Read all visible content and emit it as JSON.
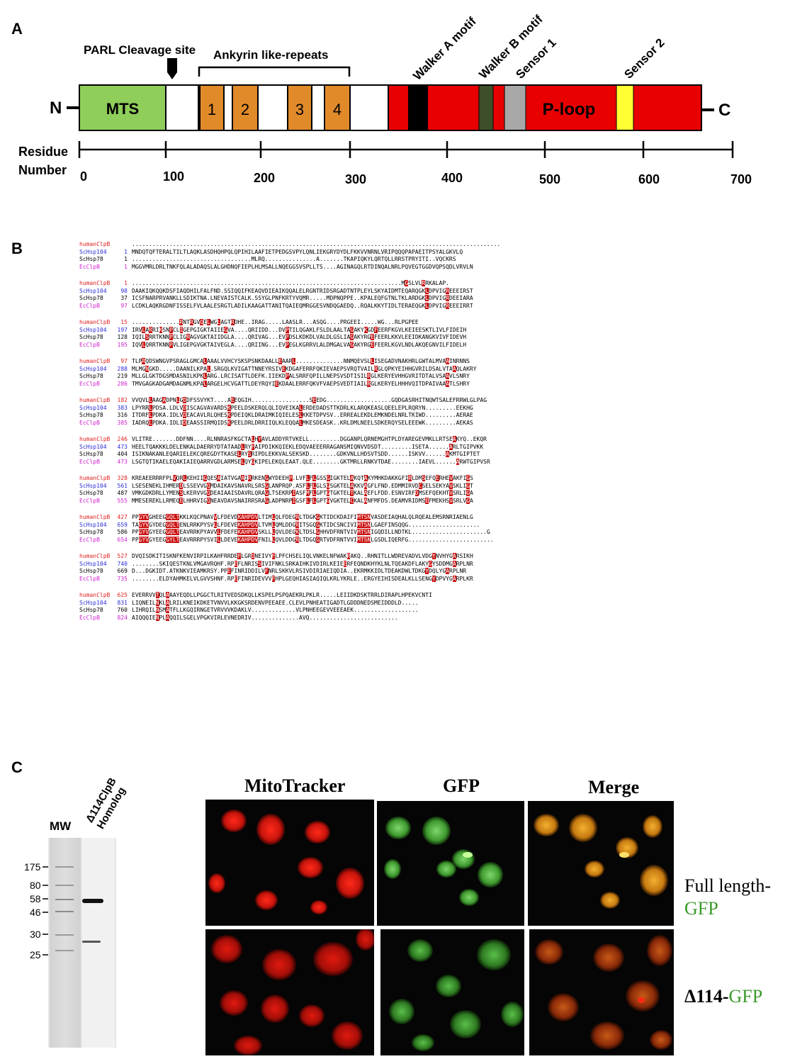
{
  "panels": {
    "a": "A",
    "b": "B",
    "c": "C"
  },
  "domain_map": {
    "n_label": "N",
    "c_label": "C",
    "parl_label": "PARL Cleavage site",
    "ankyrin_label": "Ankyrin like-repeats",
    "mts_label": "MTS",
    "repeats": [
      "1",
      "2",
      "3",
      "4"
    ],
    "ploop_label": "P-loop",
    "motifs": [
      "Walker A motif",
      "Walker B motif",
      "Sensor 1",
      "Sensor 2"
    ],
    "axis_title_line1": "Residue",
    "axis_title_line2": "Number",
    "ticks": [
      "0",
      "100",
      "200",
      "300",
      "400",
      "500",
      "600",
      "700"
    ],
    "colors": {
      "mts": "#8fce5a",
      "repeat": "#e08a2a",
      "aaa": "#e80000",
      "walker_a": "#000000",
      "walker_b": "#3d4f2a",
      "sensor1": "#a8a8a8",
      "sensor2": "#ffff33"
    }
  },
  "alignment": {
    "blocks": [
      {
        "rows": [
          {
            "name": "humanClpB",
            "num": "",
            "seq": "............................................................................................................"
          },
          {
            "name": "ScHsp104",
            "num": "1",
            "seq": "MNDQTQFTERALTILTLAQKLASDHQHPQLQPIHILAAFIETPEDGSVPYLQNLIEKGRYDYDLFKKVVNRNLVRIPQQQPAPAEITPSYALGKVLQ"
          },
          {
            "name": "ScHsp78",
            "num": "1",
            "seq": "...................................MLRQ...............A.......TKAPIQKYLQRTQLLRRSTPRYITI..VQCKRS"
          },
          {
            "name": "EcClpB",
            "num": "1",
            "seq": "MGGVMRLDRLTNKFQLALADAQSLALGHDNQFIEPLHLMSALLNQEGGSVSPLLTS....AGINAGQLRTDINQALNRLPQVEGTGGDVQPSQDLVRVLN"
          }
        ]
      },
      {
        "rows": [
          {
            "name": "humanClpB",
            "num": "1",
            "seq": "...............................................................................M[G]SLVL[R]RKALAP."
          },
          {
            "name": "ScHsp104",
            "num": "98",
            "seq": "DAAKIQKQQKDSFIAQDHILFALFND.SSIQQIFKEAQVDIEAIKQQALELRGNTRIDSRGADTNTPLEYLSKYAIDMTEQARQGK[L]DPVIG[R]EEEIRST"
          },
          {
            "name": "ScHsp78",
            "num": "37",
            "seq": "ICSFNARPRVANKLLSDIKTNA.LNEVAISTCALK.SSYGLPNFKRTYVQMR.....MDPNQPPE..KPALEQFGTNLTKLARDGK[L]DPVIG[R]DEEIARA"
          },
          {
            "name": "EcClpB",
            "num": "97",
            "seq": "LCDKLAQKRGDNFISSELFVLAALESRGTLADILKAAGATTANITQAIEQMRGGESVNDQGAEDQ..RQALKKYTIDLTERAEQGK[L]DPVIG[R]EEEIRRT"
          }
        ]
      },
      {
        "rows": [
          {
            "name": "humanClpB",
            "num": "15",
            "seq": "..............[R]NT[R]GV[Q]E[L]WG[L]AGT[R]DHE..IRAG.....LAASLR...ASQG....PRGEEI.....WG...RLPGPEE"
          },
          {
            "name": "ScHsp104",
            "num": "197",
            "seq": "IRV[L]A[R]RI[K]SN[P]CL[I]GEPGIGKTAIIE[G]VA....QRIIDD...DV[P]TILQGAKLFSLDLAALTA[G]AKY[K]GD[F]EERFKGVLKEIEESKTLIVLFIDEIH"
          },
          {
            "name": "ScHsp78",
            "num": "128",
            "seq": "IQIL[S]RRTKNN[P]CLIG[R]AGVGKTAIIDGLA....QRIVAG...EV[P]DSLKDKDLVALDLGSLIA[G]AKYRG[E]FEERLKKVLEEIDKANGKVIVFIDEVH"
          },
          {
            "name": "EcClpB",
            "num": "195",
            "seq": "IQV[L]QRRTKNN[P]VLIGEPGVGKTAIVEGLA....QRIING...EV[P]EGLKGRRVLALDMGALVA[G]AKYRG[E]FEERLKGVLNDLAKQEGNVILFIDELH"
          }
        ]
      },
      {
        "rows": [
          {
            "name": "humanClpB",
            "num": "97",
            "seq": "TLP[R]QDSWNGVPSRAGLGMCA[L]AAALVVHCYSKSPSNKDAALL[E]AAR[L]..............NNMQEVSL[L]ISEGADVNAKHRLGWTALMVA[A]INRNNS"
          },
          {
            "name": "ScHsp104",
            "num": "288",
            "seq": "MLMG[N]GKD.....DAANILKPA[L].SRGQLKVIGATTNNEYRSIV[E]KDGAFERRFQKIEVAEPSVRQTVAIL[R]GLQPKYEIHHGVRILDSALVTA[A]QLAKRY"
          },
          {
            "name": "ScHsp78",
            "num": "219",
            "seq": "MLLGLGKTDGSMDASNILKPK[L]ARG.LRCISATTLDEFK.IIEKD[P]ALSRRFQPILLNEPSVSDTISIL[R]GLKERYEVHHGVRITDTALVSA[A]VLSNRY"
          },
          {
            "name": "EcClpB",
            "num": "286",
            "seq": "TMVGAGKADGAMDAGNMLKPA[L]ARGELHCVGATTLDEYRQYI[E]KDAALERRFQKVFVAEPSVEDTIAIL[R]GLKERYELHHHVQITDPAIVAA[A]TLSHRY"
          }
        ]
      },
      {
        "rows": [
          {
            "name": "humanClpB",
            "num": "182",
            "seq": "VVQVL[L]AAG[A]DPN[L]G[D]DFSSVYKT....A[E]EQGIH.................S[E]EDG...................GQDGASRHITNQWTSALEFRRWLGLPAG"
          },
          {
            "name": "ScHsp104",
            "num": "383",
            "seq": "LPYRR[L]PDSA.LDLV[D]ISCAGVAVARDS[K]PEELDSKERQLQLIQVEIKA[L]ERDEDADSTTKDRLKLARQKEASLQEELEPLRQRYN.........EEKHG"
          },
          {
            "name": "ScHsp78",
            "num": "316",
            "seq": "ITDRF[L]PDKA.IDLV[D]EACAVLRLQHES[K]PDEIQKLDRAIMKIQIELES[L]KKETDPVSV..ERREALEKDLEMKNDELNRLTKIWD.........AERAE"
          },
          {
            "name": "EcClpB",
            "num": "385",
            "seq": "IADRQ[L]PDKA.IDLI[D]EAASSIRMQIDS[K]PEELDRLDRRIIQLKLEQQA[L]MKESDEASK..KRLDMLNEELSDKERQYSELEEEWK.........AEKAS"
          }
        ]
      },
      {
        "rows": [
          {
            "name": "humanClpB",
            "num": "246",
            "seq": "VLITRE.......DDFNN....RLNNRASFKGCTA[L]H[Y]AVLADDYRTVKELL.........DGGANPLQRNEMGHTPLDYAREGEVMKLLRTSE[A]KYQ..EKQR"
          },
          {
            "name": "ScHsp104",
            "num": "473",
            "seq": "HEELTQAKKKLDELENKALDAERRYDTATAAD[L]RY[F]AIPDIKKQIEKLEDQVAEEERRAGANSMIQNVVDSDT.........ISETA......[A]RLTGIPVKK"
          },
          {
            "name": "ScHsp78",
            "num": "404",
            "seq": "ISIKNAKANLEQARIELEKCQREGDYTKASE[L]RY[S]RIPDLEKKVALSEKSKD........GDKVNLLHDSVTSDD......ISKVV......[A]KMTGIPTET"
          },
          {
            "name": "EcClpB",
            "num": "473",
            "seq": "LSGTQTIKAELEQAKIAIEQARRVGDLARMSE[L]QY[G]KIPELEKQLEAAT.QLE........GKTMRLLRNKVTDAE........IAEVL......[A]RWTGIPVSR"
          }
        ]
      },
      {
        "rows": [
          {
            "name": "humanClpB",
            "num": "328",
            "seq": "KREAEERRRFPL[V]QR[L]KEHII[G]QES[A]IATVGA[A]I[R]RKEN[G]WYDEEH[P].LVF[L]F[L]GSS[G]IGKTEL[A]KQT[A]KYMHKDAKKGFI[R]LDM[S]EFQ[E]RHE[V]AKFI[G]S"
          },
          {
            "name": "ScHsp104",
            "num": "561",
            "seq": "LSESENEKLIHMER[D]LSSEVVG[Q]MDAIKAVSNAVRLSRS[G]LANPRQP.ASF[L]F[L]GLS[G]SGKTEL[A]KKV[A]GFLFND.EDMMIRVD[C]SELSEKYA[V]SKLI[G]T"
          },
          {
            "name": "ScHsp78",
            "num": "487",
            "seq": "VMKGDKDRLLYMEN[S]LKERVVG[Q]DEAIAAISDAVRLQRA[G]LTSEKRP[I]ASF[M]F[L]GPT[G]TGKTEL[T]KAL[A]EFLFDD.ESNVIRF[D]MSEFQEKHT[V]SRLI[G]A"
          },
          {
            "name": "EcClpB",
            "num": "555",
            "seq": "MMESEREKLLRMEQ[E]LHHRVIG[Q]NEAVDAVSNAIRRSRA[G]LADPNRP[I]GSF[L]F[L]GPT[G]VGKTEL[C]KAL[A]NFMFDS.DEAMVRIDMS[E]FMEKHS[V]SRLV[G]A"
          }
        ]
      },
      {
        "rows": [
          {
            "name": "humanClpB",
            "num": "427",
            "seq": "PP[GYV]GHEEG[GQLT]KKLKQCPNAV[V]LFDEVD[KAHPDV]LTIM[L]QLFDEG[R]LTDGK[G]KTIDCKDAIFI[MTSN]VASDEIAQHALQLRQEALEMSRNRIAENLG"
          },
          {
            "name": "ScHsp104",
            "num": "659",
            "seq": "TA[GYV]GYDEG[GQLT]ENLRRKPYSV[L]LFDEVE[KAHPDV]LTVM[L]QMLDDG[R]ITSGQ[G]KTIDCSNCIVI[MTSN]LGAEFINSQQG....................."
          },
          {
            "name": "ScHsp78",
            "num": "586",
            "seq": "PP[GYV]GYEEG[GQLT]EAVRRKPYAVV[L]FDEFE[KAHPDV]SKLL[L]QVLDEG[K]LTDSL[G]HHVDFRNTVIV[MTSN]IGQDILLNDTKL......................G"
          },
          {
            "name": "EcClpB",
            "num": "654",
            "seq": "PP[GYV]GYEEG[GYLT]EAVRRRPYSVI[L]LDEVE[KAHPDV]FNIL[L]QVLDDG[R]LTDGQ[G]RTVDFRNTVVI[MTSN]LGSDLIQERFG........................."
          }
        ]
      },
      {
        "rows": [
          {
            "name": "humanClpB",
            "num": "527",
            "seq": "DVQISDKITISKNFKENVIRPILKAHFRRDE[F]LGR[I]NEIVY[F]LPFCHSELIQLVNKELNFWAK[R]AKQ..RHNITLLWDREVADVLVDG[Y]NVHYG[A]RSIKH"
          },
          {
            "name": "ScHsp104",
            "num": "740",
            "seq": "........SKIQESTKNLVMGAVRQHF.RP[E]FLNRIS[S]IVIFNKLSRKAIHKIVDIRLKEIE[E]RFEQNDKHYKLNLTQEAKDFLAKY[G]YSDDMG[A]RPLNR"
          },
          {
            "name": "ScHsp78",
            "num": "669",
            "seq": "D...DGKIDT.ATKNKVIEAMKRSY.PP[E]FINRIDDILV[F]NRLSKKVLRSIVDIRIAEIQDIA..EKRMKKIDLTDEAKDWLTDKG[Y]DQLYG[A]RPLNR"
          },
          {
            "name": "EcClpB",
            "num": "735",
            "seq": "........ELDYAHMKELVLGVVSHNF.RP[E]FINRIDEVVV[F]HPLGEQHIASIAQIQLKRLYKRLE..ERGYEIHISDEALKLLSENG[Y]DPVYG[A]RPLKR"
          }
        ]
      },
      {
        "rows": [
          {
            "name": "humanClpB",
            "num": "625",
            "seq": "EVERRVV[T]QL[A]AAYEQDLLPGGCTLRITVEDSDKQLLKSPELPSPQAEKRLPKLR.....LEIIDKDSKTRRLDIRAPLHPEKVCNTI"
          },
          {
            "name": "ScHsp104",
            "num": "831",
            "seq": "LIQNEIL[N]KL[A]LRILKNEIKDKETVNVVLKKGKSRDENVPEEAEE.CLEVLPNHEATIGADTLGDDDNEDSMEIDDDLD....."
          },
          {
            "name": "ScHsp78",
            "num": "760",
            "seq": "LIHRQIL[N]SM[A]TFLLKGQIRNGETVRVVVKDAKLV.............VLPNHEEGEVVEEEAEK..................."
          },
          {
            "name": "EcClpB",
            "num": "824",
            "seq": "AIQQQIE[N]PL[A]QQILSGELVPGKVIRLEVNEDRIV..............AVQ.........................."
          }
        ]
      }
    ]
  },
  "blot": {
    "mw_label": "MW",
    "lane_label": "Δ114ClpB Homolog",
    "markers": [
      "175",
      "80",
      "58",
      "46",
      "30",
      "25"
    ]
  },
  "microscopy": {
    "columns": [
      "MitoTracker",
      "GFP",
      "Merge"
    ],
    "rows": [
      {
        "label_prefix": "Full length-",
        "label_suffix": "GFP"
      },
      {
        "label_prefix": "Δ114-",
        "label_suffix": "GFP"
      }
    ]
  }
}
